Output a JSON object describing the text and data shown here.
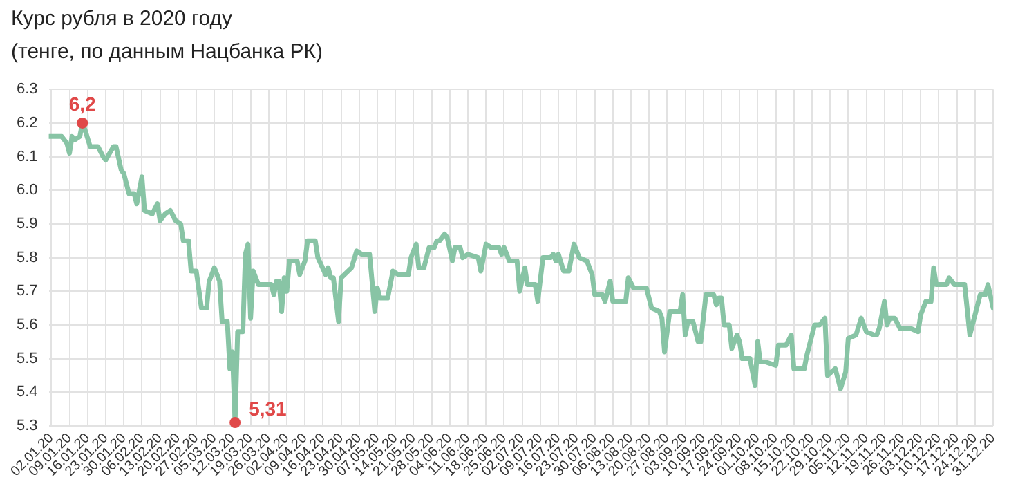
{
  "chart_data": {
    "type": "line",
    "title": "Курс рубля в 2020 году",
    "subtitle": "(тенге, по данным Нацбанка РК)",
    "x": [
      "2020-01-01",
      "2020-01-06",
      "2020-01-08",
      "2020-01-09",
      "2020-01-10",
      "2020-01-11",
      "2020-01-13",
      "2020-01-14",
      "2020-01-15",
      "2020-01-17",
      "2020-01-20",
      "2020-01-22",
      "2020-01-23",
      "2020-01-26",
      "2020-01-27",
      "2020-01-29",
      "2020-01-30",
      "2020-02-01",
      "2020-02-03",
      "2020-02-04",
      "2020-02-06",
      "2020-02-07",
      "2020-02-10",
      "2020-02-12",
      "2020-02-13",
      "2020-02-15",
      "2020-02-17",
      "2020-02-19",
      "2020-02-21",
      "2020-02-22",
      "2020-02-24",
      "2020-02-25",
      "2020-02-27",
      "2020-02-29",
      "2020-03-02",
      "2020-03-03",
      "2020-03-05",
      "2020-03-07",
      "2020-03-08",
      "2020-03-10",
      "2020-03-11",
      "2020-03-12",
      "2020-03-13",
      "2020-03-14",
      "2020-03-16",
      "2020-03-17",
      "2020-03-18",
      "2020-03-19",
      "2020-03-20",
      "2020-03-22",
      "2020-03-27",
      "2020-03-28",
      "2020-03-29",
      "2020-03-30",
      "2020-03-31",
      "2020-04-01",
      "2020-04-02",
      "2020-04-03",
      "2020-04-06",
      "2020-04-07",
      "2020-04-09",
      "2020-04-10",
      "2020-04-13",
      "2020-04-14",
      "2020-04-17",
      "2020-04-18",
      "2020-04-19",
      "2020-04-20",
      "2020-04-22",
      "2020-04-23",
      "2020-04-27",
      "2020-04-29",
      "2020-05-01",
      "2020-05-04",
      "2020-05-06",
      "2020-05-07",
      "2020-05-08",
      "2020-05-11",
      "2020-05-13",
      "2020-05-15",
      "2020-05-19",
      "2020-05-20",
      "2020-05-22",
      "2020-05-23",
      "2020-05-25",
      "2020-05-27",
      "2020-05-29",
      "2020-05-30",
      "2020-05-31",
      "2020-06-02",
      "2020-06-03",
      "2020-06-05",
      "2020-06-06",
      "2020-06-08",
      "2020-06-09",
      "2020-06-11",
      "2020-06-15",
      "2020-06-16",
      "2020-06-18",
      "2020-06-20",
      "2020-06-23",
      "2020-06-24",
      "2020-06-25",
      "2020-06-27",
      "2020-06-30",
      "2020-07-01",
      "2020-07-03",
      "2020-07-04",
      "2020-07-07",
      "2020-07-08",
      "2020-07-10",
      "2020-07-13",
      "2020-07-14",
      "2020-07-15",
      "2020-07-16",
      "2020-07-18",
      "2020-07-20",
      "2020-07-22",
      "2020-07-24",
      "2020-07-27",
      "2020-07-29",
      "2020-07-30",
      "2020-08-02",
      "2020-08-03",
      "2020-08-05",
      "2020-08-06",
      "2020-08-11",
      "2020-08-12",
      "2020-08-14",
      "2020-08-17",
      "2020-08-19",
      "2020-08-21",
      "2020-08-24",
      "2020-08-25",
      "2020-08-26",
      "2020-08-28",
      "2020-09-01",
      "2020-09-02",
      "2020-09-03",
      "2020-09-04",
      "2020-09-06",
      "2020-09-08",
      "2020-09-09",
      "2020-09-10",
      "2020-09-11",
      "2020-09-14",
      "2020-09-15",
      "2020-09-16",
      "2020-09-17",
      "2020-09-18",
      "2020-09-20",
      "2020-09-21",
      "2020-09-23",
      "2020-09-24",
      "2020-09-25",
      "2020-09-28",
      "2020-09-30",
      "2020-10-01",
      "2020-10-02",
      "2020-10-04",
      "2020-10-08",
      "2020-10-09",
      "2020-10-12",
      "2020-10-14",
      "2020-10-15",
      "2020-10-19",
      "2020-10-20",
      "2020-10-21",
      "2020-10-23",
      "2020-10-25",
      "2020-10-27",
      "2020-10-28",
      "2020-10-31",
      "2020-11-02",
      "2020-11-04",
      "2020-11-05",
      "2020-11-08",
      "2020-11-10",
      "2020-11-12",
      "2020-11-15",
      "2020-11-16",
      "2020-11-17",
      "2020-11-19",
      "2020-11-20",
      "2020-11-21",
      "2020-11-23",
      "2020-11-25",
      "2020-11-29",
      "2020-12-02",
      "2020-12-03",
      "2020-12-05",
      "2020-12-07",
      "2020-12-08",
      "2020-12-09",
      "2020-12-13",
      "2020-12-14",
      "2020-12-16",
      "2020-12-20",
      "2020-12-22",
      "2020-12-24",
      "2020-12-26",
      "2020-12-28",
      "2020-12-29",
      "2020-12-31"
    ],
    "series": [
      {
        "color": "#88c4a5",
        "values": [
          6.16,
          6.16,
          6.14,
          6.11,
          6.16,
          6.15,
          6.16,
          6.2,
          6.18,
          6.13,
          6.13,
          6.1,
          6.09,
          6.13,
          6.13,
          6.06,
          6.05,
          5.99,
          5.99,
          5.96,
          6.04,
          5.94,
          5.93,
          5.96,
          5.91,
          5.93,
          5.94,
          5.91,
          5.9,
          5.85,
          5.85,
          5.76,
          5.76,
          5.65,
          5.65,
          5.73,
          5.77,
          5.73,
          5.61,
          5.61,
          5.47,
          5.52,
          5.31,
          5.58,
          5.58,
          5.81,
          5.84,
          5.62,
          5.76,
          5.72,
          5.72,
          5.69,
          5.73,
          5.73,
          5.64,
          5.74,
          5.7,
          5.79,
          5.79,
          5.75,
          5.79,
          5.85,
          5.85,
          5.8,
          5.75,
          5.77,
          5.74,
          5.74,
          5.61,
          5.74,
          5.77,
          5.82,
          5.81,
          5.81,
          5.64,
          5.71,
          5.68,
          5.68,
          5.76,
          5.75,
          5.75,
          5.8,
          5.84,
          5.77,
          5.77,
          5.83,
          5.83,
          5.85,
          5.85,
          5.87,
          5.86,
          5.79,
          5.83,
          5.83,
          5.8,
          5.81,
          5.8,
          5.76,
          5.84,
          5.83,
          5.83,
          5.81,
          5.83,
          5.79,
          5.79,
          5.7,
          5.77,
          5.72,
          5.72,
          5.67,
          5.8,
          5.8,
          5.81,
          5.79,
          5.81,
          5.76,
          5.76,
          5.84,
          5.8,
          5.79,
          5.75,
          5.69,
          5.69,
          5.67,
          5.73,
          5.67,
          5.67,
          5.74,
          5.71,
          5.71,
          5.71,
          5.65,
          5.64,
          5.62,
          5.52,
          5.64,
          5.64,
          5.69,
          5.57,
          5.61,
          5.61,
          5.55,
          5.55,
          5.62,
          5.69,
          5.69,
          5.66,
          5.68,
          5.68,
          5.6,
          5.6,
          5.53,
          5.57,
          5.55,
          5.5,
          5.5,
          5.42,
          5.55,
          5.49,
          5.49,
          5.48,
          5.54,
          5.54,
          5.57,
          5.47,
          5.47,
          5.51,
          5.54,
          5.6,
          5.6,
          5.62,
          5.45,
          5.47,
          5.41,
          5.46,
          5.56,
          5.57,
          5.62,
          5.58,
          5.57,
          5.57,
          5.59,
          5.67,
          5.6,
          5.62,
          5.62,
          5.59,
          5.59,
          5.58,
          5.63,
          5.67,
          5.67,
          5.77,
          5.72,
          5.72,
          5.74,
          5.72,
          5.72,
          5.57,
          5.63,
          5.69,
          5.69,
          5.72,
          5.65
        ]
      }
    ],
    "annotations": [
      {
        "text": "6,2",
        "x": "2020-01-14",
        "y": 6.2
      },
      {
        "text": "5,31",
        "x": "2020-03-13",
        "y": 5.31
      }
    ],
    "xlim": [
      "2020-01-01",
      "2020-12-31"
    ],
    "xticks": [
      {
        "value": "2020-01-02",
        "label": "02.01.20"
      },
      {
        "value": "2020-01-09",
        "label": "09.01.20"
      },
      {
        "value": "2020-01-16",
        "label": "16.01.20"
      },
      {
        "value": "2020-01-23",
        "label": "23.01.20"
      },
      {
        "value": "2020-01-30",
        "label": "30.01.20"
      },
      {
        "value": "2020-02-06",
        "label": "06.02.20"
      },
      {
        "value": "2020-02-13",
        "label": "13.02.20"
      },
      {
        "value": "2020-02-20",
        "label": "20.02.20"
      },
      {
        "value": "2020-02-27",
        "label": "27.02.20"
      },
      {
        "value": "2020-03-05",
        "label": "05.03.20"
      },
      {
        "value": "2020-03-12",
        "label": "12.03.20"
      },
      {
        "value": "2020-03-19",
        "label": "19.03.20"
      },
      {
        "value": "2020-03-26",
        "label": "26.03.20"
      },
      {
        "value": "2020-04-02",
        "label": "02.04.20"
      },
      {
        "value": "2020-04-09",
        "label": "09.04.20"
      },
      {
        "value": "2020-04-16",
        "label": "16.04.20"
      },
      {
        "value": "2020-04-23",
        "label": "23.04.20"
      },
      {
        "value": "2020-04-30",
        "label": "30.04.20"
      },
      {
        "value": "2020-05-07",
        "label": "07.05.20"
      },
      {
        "value": "2020-05-14",
        "label": "14.05.20"
      },
      {
        "value": "2020-05-21",
        "label": "21.05.20"
      },
      {
        "value": "2020-05-28",
        "label": "28.05.20"
      },
      {
        "value": "2020-06-04",
        "label": "04.06.20"
      },
      {
        "value": "2020-06-11",
        "label": "11.06.20"
      },
      {
        "value": "2020-06-18",
        "label": "18.06.20"
      },
      {
        "value": "2020-06-25",
        "label": "25.06.20"
      },
      {
        "value": "2020-07-02",
        "label": "02.07.20"
      },
      {
        "value": "2020-07-09",
        "label": "09.07.20"
      },
      {
        "value": "2020-07-16",
        "label": "16.07.20"
      },
      {
        "value": "2020-07-23",
        "label": "23.07.20"
      },
      {
        "value": "2020-07-30",
        "label": "30.07.20"
      },
      {
        "value": "2020-08-06",
        "label": "06.08.20"
      },
      {
        "value": "2020-08-13",
        "label": "13.08.20"
      },
      {
        "value": "2020-08-20",
        "label": "20.08.20"
      },
      {
        "value": "2020-08-27",
        "label": "27.08.20"
      },
      {
        "value": "2020-09-03",
        "label": "03.09.20"
      },
      {
        "value": "2020-09-10",
        "label": "10.09.20"
      },
      {
        "value": "2020-09-17",
        "label": "17.09.20"
      },
      {
        "value": "2020-09-24",
        "label": "24.09.20"
      },
      {
        "value": "2020-10-01",
        "label": "01.10.20"
      },
      {
        "value": "2020-10-08",
        "label": "08.10.20"
      },
      {
        "value": "2020-10-15",
        "label": "15.10.20"
      },
      {
        "value": "2020-10-22",
        "label": "22.10.20"
      },
      {
        "value": "2020-10-29",
        "label": "29.10.20"
      },
      {
        "value": "2020-11-05",
        "label": "05.11.20"
      },
      {
        "value": "2020-11-12",
        "label": "12.11.20"
      },
      {
        "value": "2020-11-19",
        "label": "19.11.20"
      },
      {
        "value": "2020-11-26",
        "label": "26.11.20"
      },
      {
        "value": "2020-12-03",
        "label": "03.12.20"
      },
      {
        "value": "2020-12-10",
        "label": "10.12.20"
      },
      {
        "value": "2020-12-17",
        "label": "17.12.20"
      },
      {
        "value": "2020-12-24",
        "label": "24.12.20"
      },
      {
        "value": "2020-12-31",
        "label": "31.12.20"
      }
    ],
    "ylim": [
      5.3,
      6.3
    ],
    "yticks": [
      5.3,
      5.4,
      5.5,
      5.6,
      5.7,
      5.8,
      5.9,
      {
        "value": 6,
        "label": "6.0"
      },
      6.1,
      6.2,
      6.3
    ],
    "grid": true,
    "legend": false,
    "marker": "none",
    "line_style": "solid"
  }
}
